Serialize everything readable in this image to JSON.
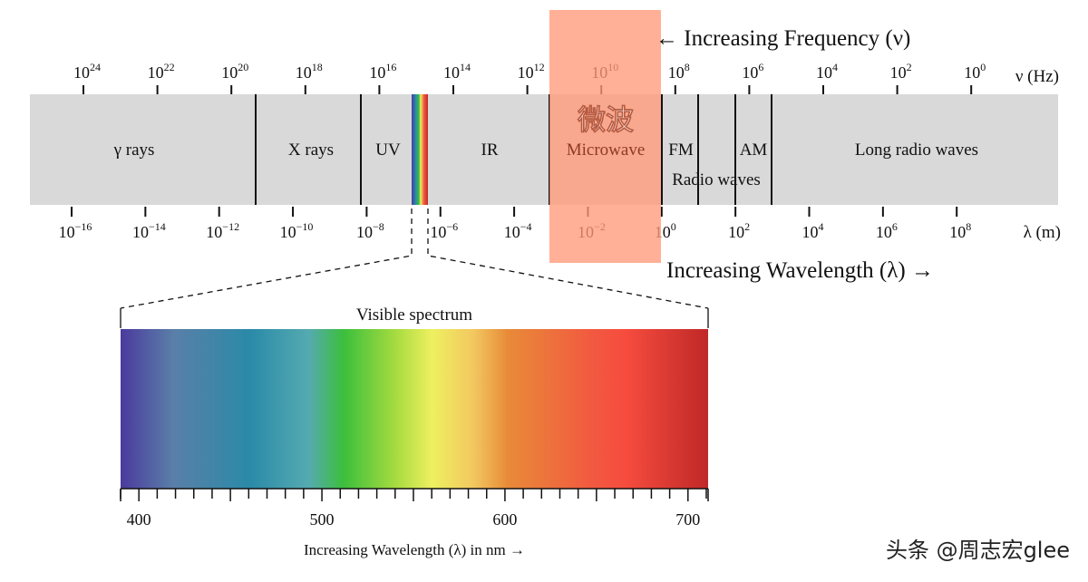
{
  "frequency_axis": {
    "label": "ν (Hz)",
    "exponents": [
      "24",
      "22",
      "20",
      "18",
      "16",
      "14",
      "12",
      "10",
      "8",
      "6",
      "4",
      "2",
      "0"
    ],
    "direction_label": "← Increasing Frequency (ν)"
  },
  "wavelength_axis": {
    "label": "λ (m)",
    "exponents": [
      "−16",
      "−14",
      "−12",
      "−10",
      "−8",
      "−6",
      "−4",
      "−2",
      "0",
      "2",
      "4",
      "6",
      "8"
    ],
    "direction_label": "Increasing Wavelength (λ) →"
  },
  "bands": {
    "gamma": "γ rays",
    "xray": "X rays",
    "uv": "UV",
    "ir": "IR",
    "microwave": "Microwave",
    "fm": "FM",
    "am": "AM",
    "radio": "Radio waves",
    "long_radio": "Long radio waves"
  },
  "highlight": {
    "label": "微波",
    "color": "#ff9a78"
  },
  "visible": {
    "title": "Visible spectrum",
    "tick_labels": [
      "400",
      "500",
      "600",
      "700"
    ],
    "range_nm": [
      390,
      711
    ],
    "caption": "Increasing Wavelength (λ) in nm →"
  },
  "watermark": "头条 @周志宏glee"
}
